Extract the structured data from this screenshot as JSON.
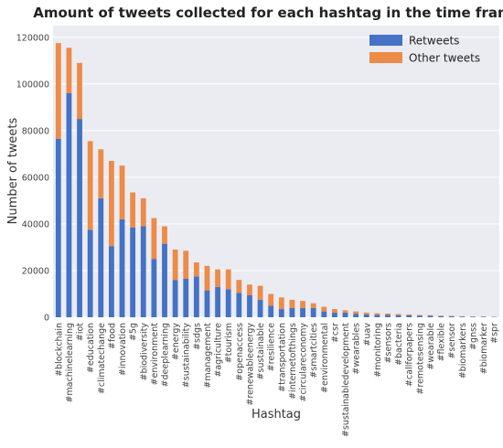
{
  "chart_data": {
    "type": "bar",
    "stacked": true,
    "title": "Amount of tweets collected for each hashtag in the time frame",
    "xlabel": "Hashtag",
    "ylabel": "Number of tweets",
    "ylim": [
      0,
      125000
    ],
    "yticks": [
      0,
      20000,
      40000,
      60000,
      80000,
      100000,
      120000
    ],
    "grid": true,
    "legend_position": "top-right",
    "categories": [
      "#blockchain",
      "#machinelearning",
      "#iot",
      "#education",
      "#climatechange",
      "#food",
      "#innovation",
      "#5g",
      "#biodiversity",
      "#environment",
      "#deeplearning",
      "#energy",
      "#sustainability",
      "#sdgs",
      "#management",
      "#agriculture",
      "#tourism",
      "#openaccess",
      "#renewableenergy",
      "#sustainable",
      "#resilience",
      "#transportation",
      "#internetofthings",
      "#circulareconomy",
      "#smartcities",
      "#environmental",
      "#csr",
      "#sustainabledevelopment",
      "#wearables",
      "#uav",
      "#monitoring",
      "#sensors",
      "#bacteria",
      "#callforpapers",
      "#remotesensing",
      "#wearable",
      "#flexible",
      "#sensor",
      "#biomarkers",
      "#gnss",
      "#biomarker",
      "#spr"
    ],
    "series": [
      {
        "name": "Retweets",
        "color": "#4472c4",
        "values": [
          76500,
          96000,
          85000,
          37500,
          51000,
          30500,
          42000,
          38500,
          39000,
          25000,
          31500,
          16000,
          16500,
          17500,
          11500,
          13000,
          12000,
          10500,
          9500,
          7500,
          5000,
          3500,
          4000,
          4000,
          4000,
          2500,
          2000,
          2000,
          1500,
          1200,
          1000,
          1000,
          900,
          800,
          700,
          600,
          500,
          400,
          300,
          250,
          200,
          150
        ]
      },
      {
        "name": "Other tweets",
        "color": "#ed8b48",
        "values": [
          41000,
          19500,
          24000,
          38000,
          21000,
          36500,
          23000,
          15000,
          12000,
          17500,
          7500,
          13000,
          12000,
          6000,
          10500,
          7500,
          8500,
          5500,
          4500,
          6000,
          5000,
          5000,
          3500,
          3000,
          2000,
          2000,
          1500,
          1000,
          1000,
          800,
          700,
          600,
          500,
          400,
          300,
          300,
          200,
          200,
          150,
          100,
          100,
          100
        ]
      }
    ]
  }
}
